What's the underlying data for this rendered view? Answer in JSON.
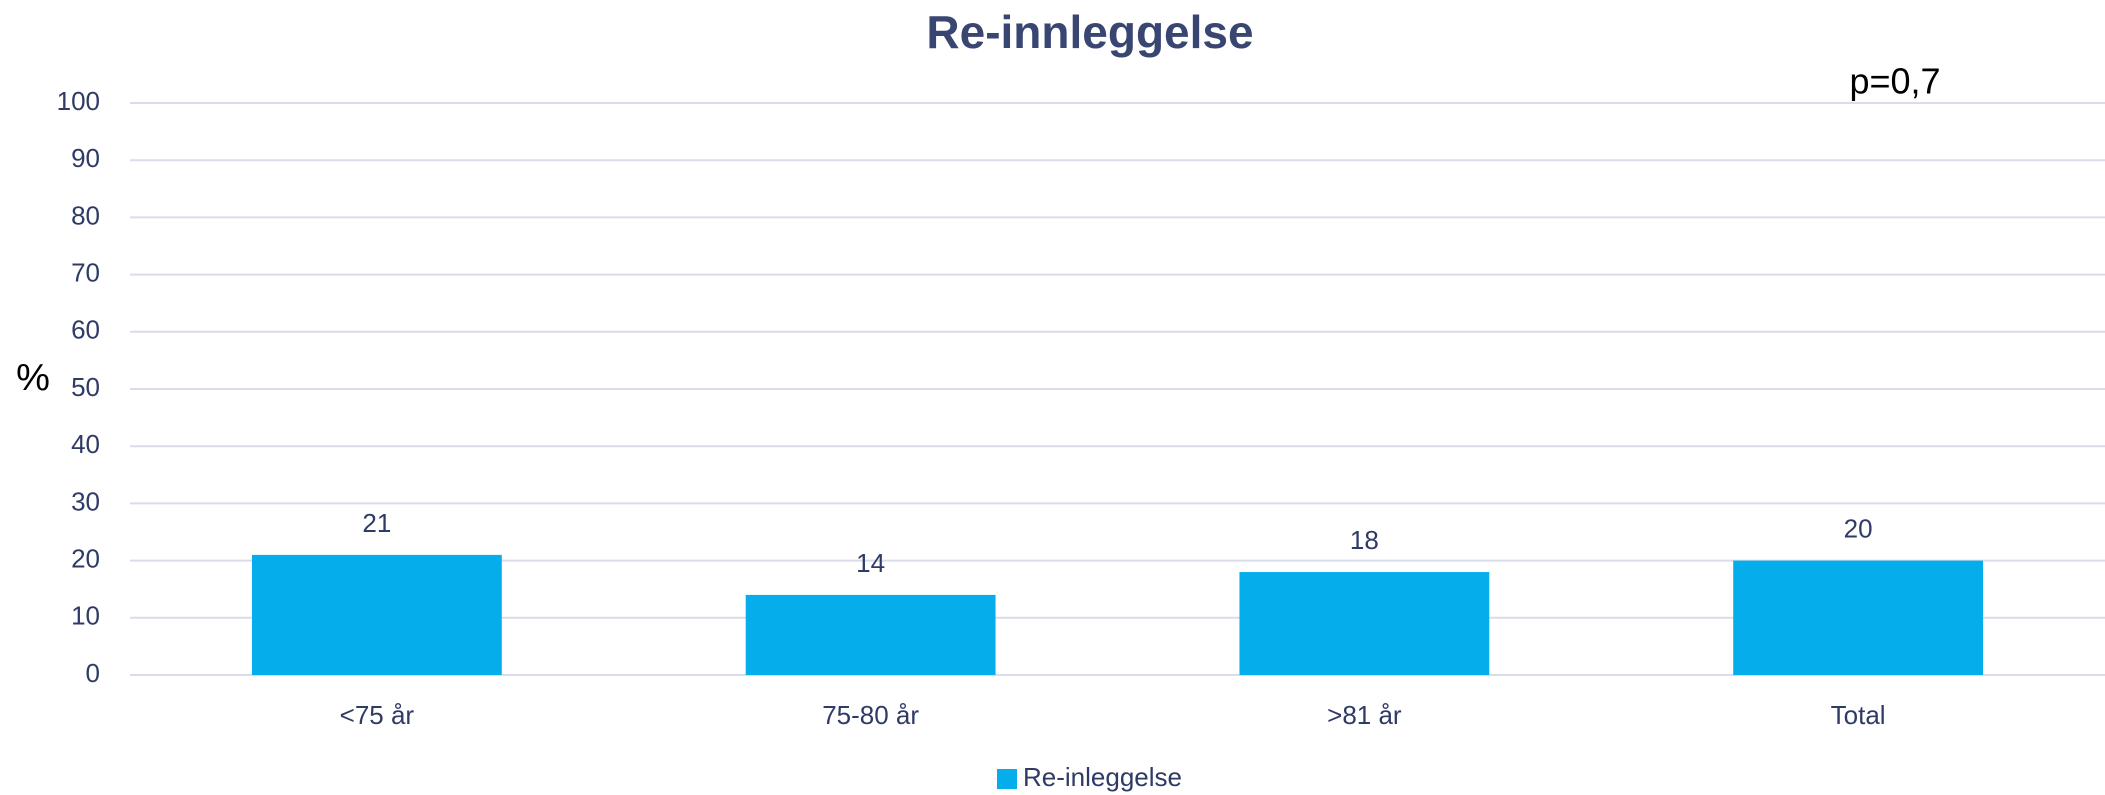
{
  "chart_data": {
    "type": "bar",
    "title": "Re-innleggelse",
    "y_label": "%",
    "annotation": "p=0,7",
    "categories": [
      "<75 år",
      "75-80 år",
      ">81 år",
      "Total"
    ],
    "series": [
      {
        "name": "Re-inleggelse",
        "color": "#05aeea",
        "values": [
          21,
          14,
          18,
          20
        ]
      }
    ],
    "ylim": [
      0,
      100
    ],
    "yticks": [
      0,
      10,
      20,
      30,
      40,
      50,
      60,
      70,
      80,
      90,
      100
    ],
    "grid": true,
    "legend": "bottom"
  }
}
